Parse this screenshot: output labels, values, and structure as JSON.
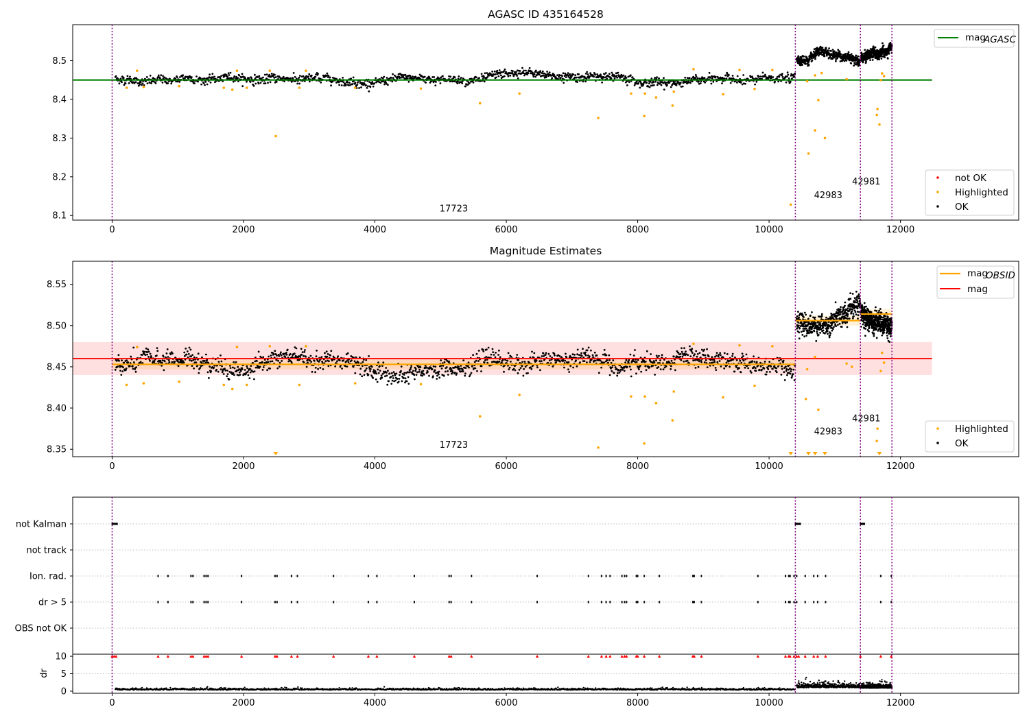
{
  "chart_data": [
    {
      "type": "scatter",
      "title": "AGASC ID 435164528",
      "xlim": [
        -600,
        13800
      ],
      "ylim": [
        8.088,
        8.593
      ],
      "xticks": [
        0,
        2000,
        4000,
        6000,
        8000,
        10000,
        12000
      ],
      "xtick_labels": [
        "0",
        "2000",
        "4000",
        "6000",
        "8000",
        "10000",
        "12000"
      ],
      "yticks": [
        8.1,
        8.2,
        8.3,
        8.4,
        8.5
      ],
      "ytick_labels": [
        "8.1",
        "8.2",
        "8.3",
        "8.4",
        "8.5"
      ],
      "obsid_boundaries": [
        0,
        10400,
        11390,
        11870
      ],
      "obsid_annotations": [
        {
          "label": "17723",
          "x": 5200,
          "y": 8.11
        },
        {
          "label": "42983",
          "x": 10900,
          "y": 8.145
        },
        {
          "label": "42981",
          "x": 11480,
          "y": 8.18
        }
      ],
      "reference_line": {
        "label": "mag",
        "subscript": "AGASC",
        "value": 8.45,
        "x_range": [
          -600,
          12480
        ],
        "color": "#008000"
      },
      "series": [
        {
          "name": "not OK",
          "color": "#ff0000",
          "points": []
        },
        {
          "name": "Highlighted",
          "color": "#ffa500",
          "points": [
            [
              220,
              8.43
            ],
            [
              480,
              8.432
            ],
            [
              1020,
              8.434
            ],
            [
              1700,
              8.43
            ],
            [
              1830,
              8.425
            ],
            [
              2050,
              8.43
            ],
            [
              2490,
              8.305
            ],
            [
              2850,
              8.43
            ],
            [
              3700,
              8.43
            ],
            [
              4700,
              8.428
            ],
            [
              5600,
              8.39
            ],
            [
              6200,
              8.415
            ],
            [
              7400,
              8.352
            ],
            [
              7900,
              8.415
            ],
            [
              8100,
              8.357
            ],
            [
              8110,
              8.415
            ],
            [
              8280,
              8.405
            ],
            [
              8530,
              8.384
            ],
            [
              8550,
              8.42
            ],
            [
              9300,
              8.413
            ],
            [
              9780,
              8.427
            ],
            [
              10330,
              8.128
            ],
            [
              10580,
              8.447
            ],
            [
              10600,
              8.26
            ],
            [
              10700,
              8.32
            ],
            [
              10750,
              8.398
            ],
            [
              10850,
              8.3
            ],
            [
              10700,
              8.462
            ],
            [
              10800,
              8.468
            ],
            [
              11180,
              8.452
            ],
            [
              11650,
              8.375
            ],
            [
              11640,
              8.36
            ],
            [
              11680,
              8.335
            ],
            [
              11700,
              8.45
            ],
            [
              11750,
              8.46
            ],
            [
              11720,
              8.467
            ],
            [
              380,
              8.474
            ],
            [
              1900,
              8.474
            ],
            [
              2400,
              8.474
            ],
            [
              2950,
              8.474
            ],
            [
              8850,
              8.478
            ],
            [
              9550,
              8.476
            ],
            [
              10050,
              8.476
            ]
          ]
        },
        {
          "name": "OK",
          "color": "#000000",
          "segments": [
            {
              "x_range": [
                50,
                10400
              ],
              "center": 8.453,
              "spread": 0.012
            },
            {
              "x_range": [
                10420,
                11390
              ],
              "center": 8.505,
              "spread": 0.014
            },
            {
              "x_range": [
                11400,
                11870
              ],
              "center": 8.514,
              "spread": 0.014
            }
          ]
        }
      ],
      "legend": {
        "placement": "upper-right + lower-right",
        "entries": [
          "mag",
          "not OK",
          "Highlighted",
          "OK"
        ]
      }
    },
    {
      "type": "scatter",
      "title": "Magnitude Estimates",
      "xlim": [
        -600,
        13800
      ],
      "ylim": [
        8.341,
        8.578
      ],
      "xticks": [
        0,
        2000,
        4000,
        6000,
        8000,
        10000,
        12000
      ],
      "xtick_labels": [
        "0",
        "2000",
        "4000",
        "6000",
        "8000",
        "10000",
        "12000"
      ],
      "yticks": [
        8.35,
        8.4,
        8.45,
        8.5,
        8.55
      ],
      "ytick_labels": [
        "8.35",
        "8.40",
        "8.45",
        "8.50",
        "8.55"
      ],
      "obsid_boundaries": [
        0,
        10400,
        11390,
        11870
      ],
      "obsid_annotations": [
        {
          "label": "17723",
          "x": 5200,
          "y": 8.352
        },
        {
          "label": "42983",
          "x": 10900,
          "y": 8.368
        },
        {
          "label": "42981",
          "x": 11480,
          "y": 8.384
        }
      ],
      "mag_line": {
        "label": "mag",
        "value": 8.46,
        "band": [
          8.44,
          8.48
        ],
        "x_range": [
          -600,
          12480
        ],
        "color": "#ff0000"
      },
      "mag_obsid": {
        "label": "mag",
        "subscript": "OBSID",
        "color": "#ffa500",
        "segments": [
          {
            "x_range": [
              0,
              10400
            ],
            "value": 8.453
          },
          {
            "x_range": [
              10400,
              11390
            ],
            "value": 8.506
          },
          {
            "x_range": [
              11390,
              11870
            ],
            "value": 8.514
          }
        ]
      },
      "series": [
        {
          "name": "Highlighted",
          "color": "#ffa500",
          "points": [
            [
              220,
              8.428
            ],
            [
              480,
              8.43
            ],
            [
              1020,
              8.432
            ],
            [
              1700,
              8.428
            ],
            [
              1830,
              8.423
            ],
            [
              2050,
              8.428
            ],
            [
              2850,
              8.428
            ],
            [
              3700,
              8.43
            ],
            [
              4700,
              8.429
            ],
            [
              5600,
              8.39
            ],
            [
              6200,
              8.416
            ],
            [
              7400,
              8.352
            ],
            [
              7900,
              8.414
            ],
            [
              8100,
              8.357
            ],
            [
              8110,
              8.414
            ],
            [
              8280,
              8.406
            ],
            [
              8530,
              8.385
            ],
            [
              8550,
              8.42
            ],
            [
              9300,
              8.413
            ],
            [
              9780,
              8.427
            ],
            [
              10580,
              8.447
            ],
            [
              10560,
              8.411
            ],
            [
              10750,
              8.398
            ],
            [
              10700,
              8.462
            ],
            [
              11180,
              8.454
            ],
            [
              11260,
              8.45
            ],
            [
              11650,
              8.375
            ],
            [
              11640,
              8.36
            ],
            [
              11700,
              8.445
            ],
            [
              11750,
              8.455
            ],
            [
              11720,
              8.467
            ],
            [
              380,
              8.474
            ],
            [
              1900,
              8.474
            ],
            [
              2400,
              8.475
            ],
            [
              2950,
              8.475
            ],
            [
              8850,
              8.478
            ],
            [
              9550,
              8.476
            ],
            [
              10050,
              8.475
            ]
          ],
          "below_range_x": [
            2490,
            10330,
            10600,
            10700,
            10850,
            11680
          ]
        },
        {
          "name": "OK",
          "color": "#000000",
          "segments": [
            {
              "x_range": [
                50,
                10400
              ],
              "center": 8.453,
              "spread": 0.012
            },
            {
              "x_range": [
                10420,
                11390
              ],
              "center": 8.505,
              "spread": 0.014
            },
            {
              "x_range": [
                11400,
                11870
              ],
              "center": 8.514,
              "spread": 0.014
            }
          ]
        }
      ],
      "legend": {
        "placement": "upper-right + lower-right",
        "entries": [
          "mag",
          "mag",
          "Highlighted",
          "OK"
        ]
      }
    },
    {
      "type": "scatter",
      "xlim": [
        -600,
        13800
      ],
      "flag_rows": [
        "not Kalman",
        "not track",
        "Ion. rad.",
        "dr > 5",
        "OBS not OK"
      ],
      "flags": {
        "not Kalman": [
          [
            0,
            80
          ],
          [
            10400,
            10480
          ],
          [
            11390,
            11460
          ]
        ],
        "not track": [],
        "Ion. rad.": [
          700,
          850,
          1200,
          1230,
          1400,
          1430,
          1460,
          1970,
          2480,
          2510,
          2730,
          2820,
          3370,
          3900,
          4030,
          4600,
          5130,
          5160,
          5470,
          6470,
          7250,
          7450,
          7520,
          7580,
          7760,
          7800,
          7830,
          7980,
          8000,
          8100,
          8330,
          8840,
          8860,
          8970,
          9830,
          10250,
          10300,
          10320,
          10380,
          10420,
          10550,
          10680,
          10740,
          10860,
          11700,
          11860
        ],
        "dr > 5": [
          700,
          850,
          1200,
          1230,
          1400,
          1430,
          1460,
          1970,
          2480,
          2510,
          2730,
          2820,
          3370,
          3900,
          4030,
          4600,
          5130,
          5160,
          5470,
          6470,
          7250,
          7450,
          7520,
          7580,
          7760,
          7800,
          7830,
          7980,
          8000,
          8100,
          8330,
          8840,
          8860,
          8970,
          9830,
          10250,
          10300,
          10320,
          10380,
          10420,
          10550,
          10680,
          10740,
          10860,
          11700,
          11860
        ],
        "OBS not OK": []
      },
      "obsid_boundaries": [
        0,
        10400,
        11390,
        11870
      ]
    },
    {
      "type": "scatter",
      "xlim": [
        -600,
        13800
      ],
      "ylim": [
        -0.6,
        10.6
      ],
      "ylabel": "dr",
      "xticks": [
        0,
        2000,
        4000,
        6000,
        8000,
        10000,
        12000
      ],
      "xtick_labels": [
        "0",
        "2000",
        "4000",
        "6000",
        "8000",
        "10000",
        "12000"
      ],
      "yticks": [
        0,
        5,
        10
      ],
      "ytick_labels": [
        "0",
        "5",
        "10"
      ],
      "clip_level": 10,
      "series": [
        {
          "name": "dr",
          "color": "#000000",
          "segments": [
            {
              "x_range": [
                50,
                10400
              ],
              "center": 0.35,
              "spread": 0.25
            },
            {
              "x_range": [
                10420,
                11390
              ],
              "center": 1.0,
              "spread": 0.6
            },
            {
              "x_range": [
                11400,
                11870
              ],
              "center": 0.9,
              "spread": 0.5
            }
          ]
        },
        {
          "name": "dr clipped",
          "color": "#ff0000",
          "x": [
            0,
            30,
            60,
            700,
            850,
            1200,
            1230,
            1400,
            1430,
            1460,
            1970,
            2480,
            2510,
            2730,
            2820,
            3370,
            3900,
            4030,
            4600,
            5130,
            5160,
            5470,
            6470,
            7250,
            7450,
            7520,
            7580,
            7760,
            7800,
            7830,
            7980,
            8000,
            8100,
            8330,
            8840,
            8860,
            8970,
            9830,
            10250,
            10300,
            10320,
            10380,
            10420,
            10450,
            10550,
            10680,
            10740,
            10860,
            11390,
            11700,
            11860
          ]
        }
      ],
      "obsid_boundaries": [
        0,
        10400,
        11390,
        11870
      ]
    }
  ]
}
